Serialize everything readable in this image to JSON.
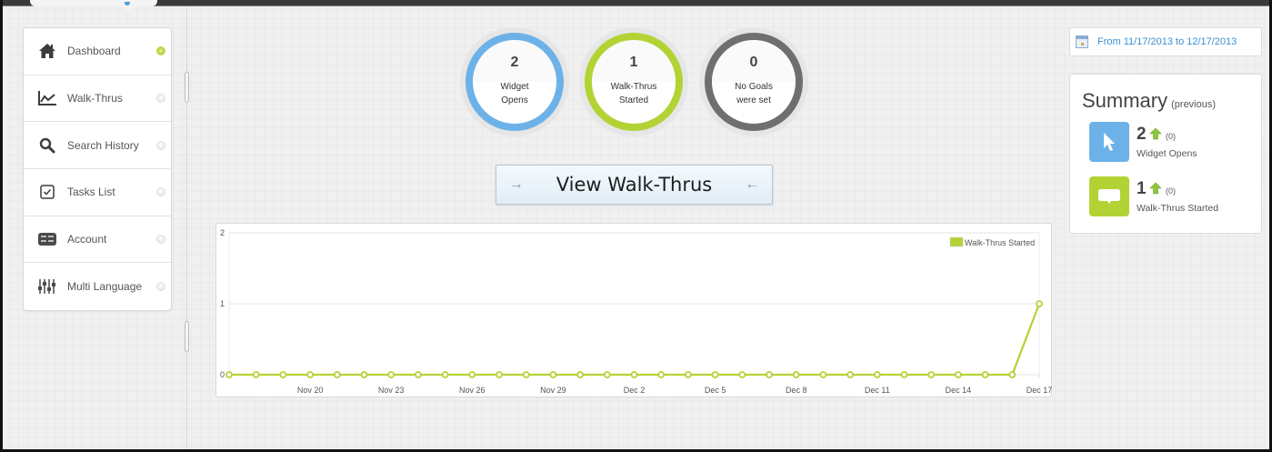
{
  "sidebar": {
    "items": [
      {
        "label": "Dashboard",
        "icon": "home-icon",
        "active": true
      },
      {
        "label": "Walk-Thrus",
        "icon": "line-chart-icon",
        "active": false
      },
      {
        "label": "Search History",
        "icon": "search-icon",
        "active": false
      },
      {
        "label": "Tasks List",
        "icon": "checkbox-icon",
        "active": false
      },
      {
        "label": "Account",
        "icon": "account-icon",
        "active": false
      },
      {
        "label": "Multi Language",
        "icon": "sliders-icon",
        "active": false
      }
    ]
  },
  "stats": [
    {
      "value": "2",
      "label": "Widget\nOpens",
      "color": "#6cb2e8"
    },
    {
      "value": "1",
      "label": "Walk-Thrus\nStarted",
      "color": "#b3d335"
    },
    {
      "value": "0",
      "label": "No Goals\nwere set",
      "color": "#6f6f6f"
    }
  ],
  "view_button": {
    "label": "View Walk-Thrus",
    "left_arrow": "→",
    "right_arrow": "←"
  },
  "date_range": {
    "label": "From 11/17/2013 to 12/17/2013"
  },
  "summary": {
    "title": "Summary",
    "subtitle": "(previous)",
    "items": [
      {
        "value": "2",
        "previous": "(0)",
        "label": "Widget Opens",
        "icon": "cursor-icon",
        "color": "#6cb2e8"
      },
      {
        "value": "1",
        "previous": "(0)",
        "label": "Walk-Thrus Started",
        "icon": "speech-bubble-icon",
        "color": "#b3d335"
      }
    ]
  },
  "chart_data": {
    "type": "line",
    "title": "",
    "xlabel": "",
    "ylabel": "",
    "ylim": [
      0,
      2
    ],
    "yticks": [
      0,
      1,
      2
    ],
    "grid": true,
    "legend_position": "top-right",
    "x_tick_labels": [
      "Nov 20",
      "Nov 23",
      "Nov 26",
      "Nov 29",
      "Dec 2",
      "Dec 5",
      "Dec 8",
      "Dec 11",
      "Dec 14",
      "Dec 17"
    ],
    "x": [
      "Nov 17",
      "Nov 18",
      "Nov 19",
      "Nov 20",
      "Nov 21",
      "Nov 22",
      "Nov 23",
      "Nov 24",
      "Nov 25",
      "Nov 26",
      "Nov 27",
      "Nov 28",
      "Nov 29",
      "Nov 30",
      "Dec 1",
      "Dec 2",
      "Dec 3",
      "Dec 4",
      "Dec 5",
      "Dec 6",
      "Dec 7",
      "Dec 8",
      "Dec 9",
      "Dec 10",
      "Dec 11",
      "Dec 12",
      "Dec 13",
      "Dec 14",
      "Dec 15",
      "Dec 16",
      "Dec 17"
    ],
    "series": [
      {
        "name": "Walk-Thrus Started",
        "color": "#b3d335",
        "values": [
          0,
          0,
          0,
          0,
          0,
          0,
          0,
          0,
          0,
          0,
          0,
          0,
          0,
          0,
          0,
          0,
          0,
          0,
          0,
          0,
          0,
          0,
          0,
          0,
          0,
          0,
          0,
          0,
          0,
          0,
          1
        ]
      }
    ]
  }
}
